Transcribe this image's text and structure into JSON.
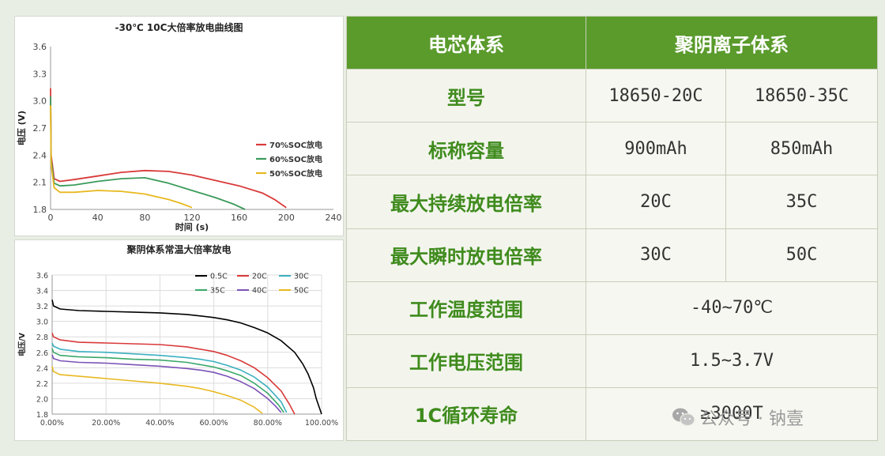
{
  "chart_data": [
    {
      "type": "line",
      "title": "-30℃ 10C大倍率放电曲线图",
      "xlabel": "时间 (s)",
      "ylabel": "电压 (V)",
      "xlim": [
        0,
        240
      ],
      "ylim": [
        1.8,
        3.6
      ],
      "xticks": [
        "0",
        "40",
        "80",
        "120",
        "160",
        "200",
        "240"
      ],
      "yticks": [
        "1.8",
        "2.1",
        "2.4",
        "2.7",
        "3.0",
        "3.3",
        "3.6"
      ],
      "legend": "right",
      "series": [
        {
          "name": "70%SOC放电",
          "color": "#d93a3a",
          "x": [
            0,
            0.5,
            3,
            8,
            20,
            40,
            60,
            80,
            100,
            120,
            140,
            160,
            180,
            190,
            200
          ],
          "y": [
            3.14,
            2.4,
            2.14,
            2.11,
            2.13,
            2.17,
            2.21,
            2.23,
            2.22,
            2.18,
            2.12,
            2.06,
            1.98,
            1.91,
            1.82
          ]
        },
        {
          "name": "60%SOC放电",
          "color": "#3a9a5a",
          "x": [
            0,
            0.5,
            3,
            8,
            20,
            40,
            60,
            80,
            100,
            120,
            140,
            155,
            165
          ],
          "y": [
            3.05,
            2.35,
            2.09,
            2.06,
            2.07,
            2.11,
            2.14,
            2.15,
            2.09,
            2.01,
            1.93,
            1.86,
            1.8
          ]
        },
        {
          "name": "50%SOC放电",
          "color": "#e8b820",
          "x": [
            0,
            0.5,
            3,
            8,
            20,
            40,
            60,
            80,
            90,
            100,
            110,
            120
          ],
          "y": [
            2.95,
            2.3,
            2.04,
            1.99,
            1.99,
            2.01,
            2.0,
            1.97,
            1.94,
            1.91,
            1.87,
            1.82
          ]
        }
      ]
    },
    {
      "type": "line",
      "title": "聚阴体系常温大倍率放电",
      "xlabel": "",
      "ylabel": "电压/V",
      "xlim": [
        0,
        100
      ],
      "ylim": [
        1.8,
        3.6
      ],
      "xticks": [
        "0.00%",
        "20.00%",
        "40.00%",
        "60.00%",
        "80.00%",
        "100.00%"
      ],
      "yticks": [
        "1.8",
        "2.0",
        "2.2",
        "2.4",
        "2.6",
        "2.8",
        "3.0",
        "3.2",
        "3.4",
        "3.6"
      ],
      "legend": "top-right",
      "series": [
        {
          "name": "0.5C",
          "color": "#000000",
          "x": [
            0,
            0.5,
            3,
            10,
            20,
            30,
            40,
            50,
            55,
            60,
            65,
            70,
            75,
            80,
            85,
            90,
            93,
            95,
            97,
            98,
            99,
            100
          ],
          "y": [
            3.28,
            3.2,
            3.16,
            3.14,
            3.13,
            3.12,
            3.11,
            3.09,
            3.07,
            3.05,
            3.02,
            2.98,
            2.92,
            2.85,
            2.75,
            2.6,
            2.45,
            2.32,
            2.14,
            2.0,
            1.9,
            1.8
          ]
        },
        {
          "name": "20C",
          "color": "#d93a3a",
          "x": [
            0,
            0.5,
            3,
            10,
            20,
            30,
            40,
            50,
            55,
            60,
            65,
            70,
            75,
            80,
            85,
            88,
            90
          ],
          "y": [
            2.85,
            2.8,
            2.76,
            2.73,
            2.72,
            2.71,
            2.7,
            2.67,
            2.64,
            2.61,
            2.56,
            2.49,
            2.4,
            2.27,
            2.1,
            1.93,
            1.8
          ]
        },
        {
          "name": "30C",
          "color": "#3ab0c0",
          "x": [
            0,
            0.5,
            3,
            10,
            20,
            30,
            40,
            50,
            55,
            60,
            65,
            70,
            75,
            80,
            85,
            87
          ],
          "y": [
            2.72,
            2.68,
            2.64,
            2.61,
            2.6,
            2.58,
            2.56,
            2.53,
            2.51,
            2.48,
            2.43,
            2.37,
            2.28,
            2.15,
            1.96,
            1.82
          ]
        },
        {
          "name": "35C",
          "color": "#3aa86a",
          "x": [
            0,
            0.5,
            3,
            10,
            20,
            30,
            40,
            50,
            55,
            60,
            65,
            70,
            75,
            80,
            84,
            86
          ],
          "y": [
            2.65,
            2.6,
            2.56,
            2.54,
            2.53,
            2.51,
            2.5,
            2.47,
            2.44,
            2.41,
            2.36,
            2.3,
            2.2,
            2.07,
            1.92,
            1.82
          ]
        },
        {
          "name": "40C",
          "color": "#7b52b8",
          "x": [
            0,
            0.5,
            3,
            10,
            20,
            30,
            40,
            50,
            55,
            60,
            65,
            70,
            75,
            80,
            83,
            85
          ],
          "y": [
            2.57,
            2.52,
            2.49,
            2.47,
            2.46,
            2.44,
            2.42,
            2.39,
            2.37,
            2.34,
            2.29,
            2.22,
            2.13,
            2.0,
            1.9,
            1.82
          ]
        },
        {
          "name": "50C",
          "color": "#e8b820",
          "x": [
            0,
            0.5,
            3,
            10,
            20,
            30,
            40,
            50,
            55,
            60,
            65,
            70,
            75,
            78
          ],
          "y": [
            2.42,
            2.35,
            2.31,
            2.29,
            2.26,
            2.23,
            2.2,
            2.16,
            2.13,
            2.09,
            2.04,
            1.98,
            1.89,
            1.81
          ]
        }
      ]
    }
  ],
  "table": {
    "header": {
      "label": "电芯体系",
      "value": "聚阴离子体系"
    },
    "rows": [
      {
        "label": "型号",
        "v1": "18650-20C",
        "v2": "18650-35C"
      },
      {
        "label": "标称容量",
        "v1": "900mAh",
        "v2": "850mAh"
      },
      {
        "label": "最大持续放电倍率",
        "v1": "20C",
        "v2": "35C"
      },
      {
        "label": "最大瞬时放电倍率",
        "v1": "30C",
        "v2": "50C"
      },
      {
        "label": "工作温度范围",
        "v": "-40~70℃"
      },
      {
        "label": "工作电压范围",
        "v": "1.5~3.7V"
      },
      {
        "label": "1C循环寿命",
        "v": "≥3000T"
      }
    ]
  },
  "watermark": "公众号 · 钠壹",
  "watermark_icon": "wechat-icon"
}
